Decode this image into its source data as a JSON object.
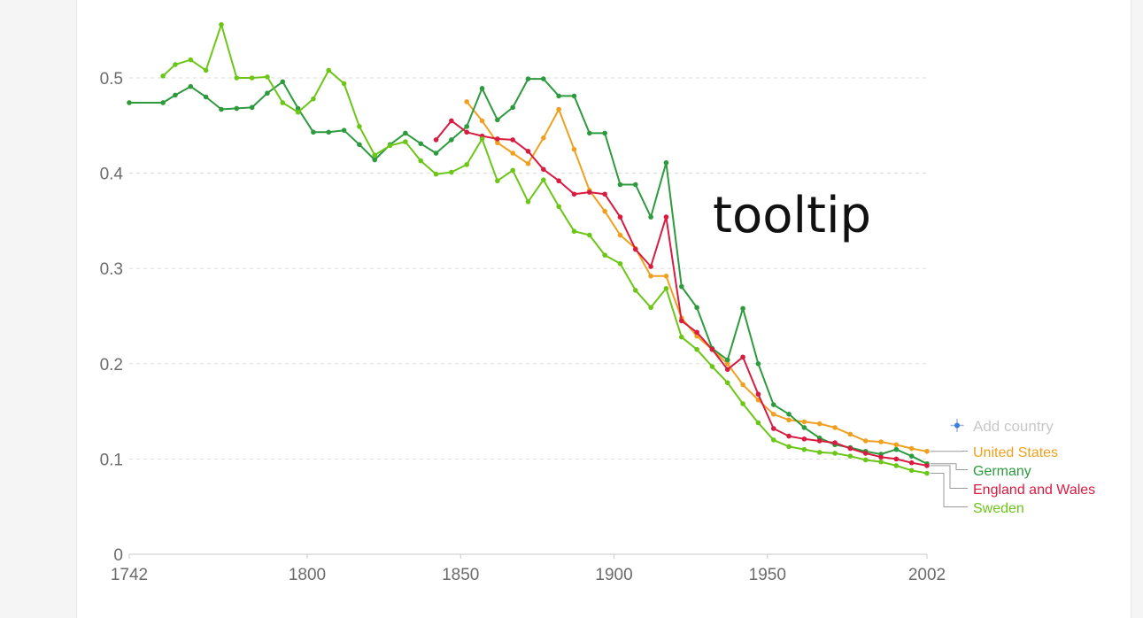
{
  "add_country_label": "Add country",
  "annotation": "tooltip",
  "chart_data": {
    "type": "line",
    "title": "",
    "xlabel": "",
    "ylabel": "",
    "xlim": [
      1742,
      2002
    ],
    "ylim": [
      0,
      0.55
    ],
    "x_ticks": [
      "1742",
      "1800",
      "1850",
      "1900",
      "1950",
      "2002"
    ],
    "y_ticks": [
      "0",
      "0.1",
      "0.2",
      "0.3",
      "0.4",
      "0.5"
    ],
    "grid": true,
    "legend": "right-bottom",
    "series": [
      {
        "name": "United States",
        "color": "#f0a020",
        "points": [
          [
            1852,
            0.475
          ],
          [
            1857,
            0.455
          ],
          [
            1862,
            0.432
          ],
          [
            1867,
            0.421
          ],
          [
            1872,
            0.41
          ],
          [
            1877,
            0.437
          ],
          [
            1882,
            0.467
          ],
          [
            1887,
            0.425
          ],
          [
            1892,
            0.382
          ],
          [
            1897,
            0.36
          ],
          [
            1902,
            0.335
          ],
          [
            1907,
            0.321
          ],
          [
            1912,
            0.292
          ],
          [
            1917,
            0.292
          ],
          [
            1922,
            0.248
          ],
          [
            1927,
            0.229
          ],
          [
            1932,
            0.215
          ],
          [
            1937,
            0.2
          ],
          [
            1942,
            0.178
          ],
          [
            1947,
            0.162
          ],
          [
            1952,
            0.147
          ],
          [
            1957,
            0.141
          ],
          [
            1962,
            0.139
          ],
          [
            1967,
            0.137
          ],
          [
            1972,
            0.133
          ],
          [
            1977,
            0.126
          ],
          [
            1982,
            0.119
          ],
          [
            1987,
            0.118
          ],
          [
            1992,
            0.115
          ],
          [
            1997,
            0.111
          ],
          [
            2002,
            0.108
          ]
        ]
      },
      {
        "name": "Germany",
        "color": "#2e9a3e",
        "points": [
          [
            1742,
            0.474
          ],
          [
            1753,
            0.474
          ],
          [
            1757,
            0.482
          ],
          [
            1762,
            0.491
          ],
          [
            1767,
            0.48
          ],
          [
            1772,
            0.467
          ],
          [
            1777,
            0.468
          ],
          [
            1782,
            0.469
          ],
          [
            1787,
            0.484
          ],
          [
            1792,
            0.496
          ],
          [
            1797,
            0.468
          ],
          [
            1802,
            0.443
          ],
          [
            1807,
            0.443
          ],
          [
            1812,
            0.445
          ],
          [
            1817,
            0.43
          ],
          [
            1822,
            0.414
          ],
          [
            1827,
            0.43
          ],
          [
            1832,
            0.442
          ],
          [
            1837,
            0.431
          ],
          [
            1842,
            0.421
          ],
          [
            1847,
            0.435
          ],
          [
            1852,
            0.449
          ],
          [
            1857,
            0.489
          ],
          [
            1862,
            0.456
          ],
          [
            1867,
            0.469
          ],
          [
            1872,
            0.499
          ],
          [
            1877,
            0.499
          ],
          [
            1882,
            0.481
          ],
          [
            1887,
            0.481
          ],
          [
            1892,
            0.442
          ],
          [
            1897,
            0.442
          ],
          [
            1902,
            0.388
          ],
          [
            1907,
            0.388
          ],
          [
            1912,
            0.354
          ],
          [
            1917,
            0.411
          ],
          [
            1922,
            0.281
          ],
          [
            1927,
            0.259
          ],
          [
            1932,
            0.216
          ],
          [
            1937,
            0.204
          ],
          [
            1942,
            0.258
          ],
          [
            1947,
            0.2
          ],
          [
            1952,
            0.157
          ],
          [
            1957,
            0.147
          ],
          [
            1962,
            0.133
          ],
          [
            1967,
            0.122
          ],
          [
            1972,
            0.115
          ],
          [
            1977,
            0.112
          ],
          [
            1982,
            0.108
          ],
          [
            1987,
            0.105
          ],
          [
            1992,
            0.11
          ],
          [
            1997,
            0.103
          ],
          [
            2002,
            0.095
          ]
        ]
      },
      {
        "name": "England and Wales",
        "color": "#d81b40",
        "points": [
          [
            1842,
            0.435
          ],
          [
            1847,
            0.455
          ],
          [
            1852,
            0.443
          ],
          [
            1857,
            0.439
          ],
          [
            1862,
            0.436
          ],
          [
            1867,
            0.435
          ],
          [
            1872,
            0.423
          ],
          [
            1877,
            0.404
          ],
          [
            1882,
            0.392
          ],
          [
            1887,
            0.378
          ],
          [
            1892,
            0.38
          ],
          [
            1897,
            0.378
          ],
          [
            1902,
            0.354
          ],
          [
            1907,
            0.32
          ],
          [
            1912,
            0.302
          ],
          [
            1917,
            0.354
          ],
          [
            1922,
            0.245
          ],
          [
            1927,
            0.233
          ],
          [
            1932,
            0.215
          ],
          [
            1937,
            0.194
          ],
          [
            1942,
            0.207
          ],
          [
            1947,
            0.168
          ],
          [
            1952,
            0.132
          ],
          [
            1957,
            0.124
          ],
          [
            1962,
            0.121
          ],
          [
            1967,
            0.119
          ],
          [
            1972,
            0.117
          ],
          [
            1977,
            0.111
          ],
          [
            1982,
            0.106
          ],
          [
            1987,
            0.102
          ],
          [
            1992,
            0.1
          ],
          [
            1997,
            0.096
          ],
          [
            2002,
            0.093
          ]
        ]
      },
      {
        "name": "Sweden",
        "color": "#6cc617",
        "points": [
          [
            1753,
            0.502
          ],
          [
            1757,
            0.514
          ],
          [
            1762,
            0.519
          ],
          [
            1767,
            0.508
          ],
          [
            1772,
            0.556
          ],
          [
            1777,
            0.5
          ],
          [
            1782,
            0.5
          ],
          [
            1787,
            0.501
          ],
          [
            1792,
            0.474
          ],
          [
            1797,
            0.464
          ],
          [
            1802,
            0.478
          ],
          [
            1807,
            0.508
          ],
          [
            1812,
            0.494
          ],
          [
            1817,
            0.449
          ],
          [
            1822,
            0.419
          ],
          [
            1827,
            0.429
          ],
          [
            1832,
            0.433
          ],
          [
            1837,
            0.413
          ],
          [
            1842,
            0.399
          ],
          [
            1847,
            0.401
          ],
          [
            1852,
            0.409
          ],
          [
            1857,
            0.436
          ],
          [
            1862,
            0.392
          ],
          [
            1867,
            0.403
          ],
          [
            1872,
            0.37
          ],
          [
            1877,
            0.393
          ],
          [
            1882,
            0.365
          ],
          [
            1887,
            0.339
          ],
          [
            1892,
            0.335
          ],
          [
            1897,
            0.314
          ],
          [
            1902,
            0.305
          ],
          [
            1907,
            0.277
          ],
          [
            1912,
            0.259
          ],
          [
            1917,
            0.279
          ],
          [
            1922,
            0.228
          ],
          [
            1927,
            0.215
          ],
          [
            1932,
            0.197
          ],
          [
            1937,
            0.18
          ],
          [
            1942,
            0.158
          ],
          [
            1947,
            0.138
          ],
          [
            1952,
            0.12
          ],
          [
            1957,
            0.113
          ],
          [
            1962,
            0.11
          ],
          [
            1967,
            0.107
          ],
          [
            1972,
            0.106
          ],
          [
            1977,
            0.103
          ],
          [
            1982,
            0.099
          ],
          [
            1987,
            0.097
          ],
          [
            1992,
            0.093
          ],
          [
            1997,
            0.088
          ],
          [
            2002,
            0.085
          ]
        ]
      }
    ]
  }
}
